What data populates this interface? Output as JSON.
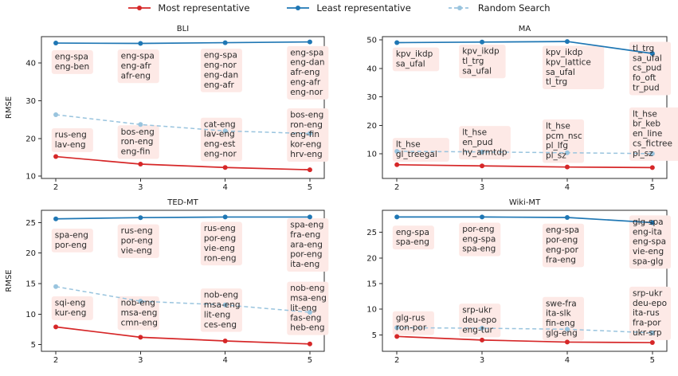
{
  "legend": {
    "items": [
      {
        "label": "Most representative",
        "color": "#d62728",
        "dash": "solid"
      },
      {
        "label": "Least representative",
        "color": "#1f77b4",
        "dash": "solid"
      },
      {
        "label": "Random Search",
        "color": "#99c4de",
        "dash": "dashed"
      }
    ]
  },
  "colors": {
    "most": "#d62728",
    "least": "#1f77b4",
    "random": "#99c4de",
    "annotation_bg": "#fde9e6",
    "annotation_text": "#2b2b2b",
    "axis_text": "#1a1a1a",
    "spine": "#2b2b2b"
  },
  "chart_data": [
    {
      "type": "line",
      "title": "BLI",
      "ylabel": "RMSE",
      "x": [
        2,
        3,
        4,
        5
      ],
      "xticks": [
        2,
        3,
        4,
        5
      ],
      "yticks": [
        10,
        20,
        30,
        40
      ],
      "xlim": [
        1.83,
        5.17
      ],
      "ylim": [
        9.4,
        47.0
      ],
      "series": [
        {
          "name": "Most representative",
          "key": "most",
          "style": "solid",
          "values": [
            15.2,
            13.2,
            12.3,
            11.7
          ]
        },
        {
          "name": "Least representative",
          "key": "least",
          "style": "solid",
          "values": [
            45.3,
            45.2,
            45.4,
            45.6
          ]
        },
        {
          "name": "Random Search",
          "key": "random",
          "style": "dashed",
          "values": [
            26.3,
            23.7,
            22.0,
            21.3
          ]
        }
      ],
      "annotations": [
        {
          "x": 2,
          "y": 43.4,
          "lines": [
            "eng-spa",
            "eng-ben"
          ]
        },
        {
          "x": 3,
          "y": 43.6,
          "lines": [
            "eng-spa",
            "eng-afr",
            "afr-eng"
          ]
        },
        {
          "x": 4,
          "y": 43.8,
          "lines": [
            "eng-spa",
            "eng-nor",
            "eng-dan",
            "eng-afr"
          ]
        },
        {
          "x": 5,
          "y": 44.5,
          "lines": [
            "eng-spa",
            "eng-dan",
            "afr-eng",
            "eng-afr",
            "eng-nor"
          ]
        },
        {
          "x": 2,
          "y": 22.7,
          "lines": [
            "rus-eng",
            "lav-eng"
          ]
        },
        {
          "x": 3,
          "y": 23.5,
          "lines": [
            "bos-eng",
            "ron-eng",
            "eng-fin"
          ]
        },
        {
          "x": 4,
          "y": 25.5,
          "lines": [
            "cat-eng",
            "lav-eng",
            "eng-est",
            "eng-nor"
          ]
        },
        {
          "x": 5,
          "y": 28.0,
          "lines": [
            "bos-eng",
            "ron-eng",
            "eng-fin",
            "kor-eng",
            "hrv-eng"
          ]
        }
      ]
    },
    {
      "type": "line",
      "title": "MA",
      "ylabel": "",
      "x": [
        2,
        3,
        4,
        5
      ],
      "xticks": [
        2,
        3,
        4,
        5
      ],
      "yticks": [
        10,
        20,
        30,
        40,
        50
      ],
      "xlim": [
        1.83,
        5.17
      ],
      "ylim": [
        1.4,
        51.1
      ],
      "series": [
        {
          "name": "Most representative",
          "key": "most",
          "style": "solid",
          "values": [
            6.2,
            5.8,
            5.4,
            5.2
          ]
        },
        {
          "name": "Least representative",
          "key": "least",
          "style": "solid",
          "values": [
            49.0,
            49.2,
            49.4,
            45.2
          ]
        },
        {
          "name": "Random Search",
          "key": "random",
          "style": "dashed",
          "values": [
            10.9,
            10.7,
            10.4,
            10.1
          ]
        }
      ],
      "annotations": [
        {
          "x": 2,
          "y": 47.3,
          "lines": [
            "kpv_ikdp",
            "sa_ufal"
          ]
        },
        {
          "x": 3,
          "y": 48.3,
          "lines": [
            "kpv_ikdp",
            "tl_trg",
            "sa_ufal"
          ]
        },
        {
          "x": 4,
          "y": 47.9,
          "lines": [
            "kpv_ikdp",
            "kpv_lattice",
            "sa_ufal",
            "tl_trg"
          ]
        },
        {
          "x": 5,
          "y": 49.3,
          "lines": [
            "tl_trg",
            "sa_ufal",
            "cs_pud",
            "fo_oft",
            "tr_pud"
          ]
        },
        {
          "x": 2,
          "y": 15.6,
          "lines": [
            "lt_hse",
            "gl_treegal"
          ]
        },
        {
          "x": 3,
          "y": 19.8,
          "lines": [
            "lt_hse",
            "en_pud",
            "hy_armtdp"
          ]
        },
        {
          "x": 4,
          "y": 22.1,
          "lines": [
            "lt_hse",
            "pcm_nsc",
            "pl_lfg",
            "pl_sz"
          ]
        },
        {
          "x": 5,
          "y": 26.3,
          "lines": [
            "lt_hse",
            "br_keb",
            "en_line",
            "cs_fictree",
            "pl_sz"
          ]
        }
      ]
    },
    {
      "type": "line",
      "title": "TED-MT",
      "ylabel": "RMSE",
      "x": [
        2,
        3,
        4,
        5
      ],
      "xticks": [
        2,
        3,
        4,
        5
      ],
      "yticks": [
        5,
        10,
        15,
        20,
        25
      ],
      "xlim": [
        1.83,
        5.17
      ],
      "ylim": [
        3.9,
        27.0
      ],
      "series": [
        {
          "name": "Most representative",
          "key": "most",
          "style": "solid",
          "values": [
            7.9,
            6.2,
            5.6,
            5.1
          ]
        },
        {
          "name": "Least representative",
          "key": "least",
          "style": "solid",
          "values": [
            25.6,
            25.8,
            25.9,
            25.9
          ]
        },
        {
          "name": "Random Search",
          "key": "random",
          "style": "dashed",
          "values": [
            14.5,
            12.1,
            11.5,
            10.3
          ]
        }
      ],
      "annotations": [
        {
          "x": 2,
          "y": 24.0,
          "lines": [
            "spa-eng",
            "por-eng"
          ]
        },
        {
          "x": 3,
          "y": 24.7,
          "lines": [
            "rus-eng",
            "por-eng",
            "vie-eng"
          ]
        },
        {
          "x": 4,
          "y": 25.1,
          "lines": [
            "rus-eng",
            "por-eng",
            "vie-eng",
            "ron-eng"
          ]
        },
        {
          "x": 5,
          "y": 25.7,
          "lines": [
            "spa-eng",
            "fra-eng",
            "ara-eng",
            "por-eng",
            "ita-eng"
          ]
        },
        {
          "x": 2,
          "y": 12.9,
          "lines": [
            "sqi-eng",
            "kur-eng"
          ]
        },
        {
          "x": 3,
          "y": 12.9,
          "lines": [
            "nob-eng",
            "msa-eng",
            "cmn-eng"
          ]
        },
        {
          "x": 4,
          "y": 14.2,
          "lines": [
            "nob-eng",
            "msa-eng",
            "lit-eng",
            "ces-eng"
          ]
        },
        {
          "x": 5,
          "y": 15.3,
          "lines": [
            "nob-eng",
            "msa-eng",
            "lit-eng",
            "fas-eng",
            "heb-eng"
          ]
        }
      ]
    },
    {
      "type": "line",
      "title": "Wiki-MT",
      "ylabel": "",
      "x": [
        2,
        3,
        4,
        5
      ],
      "xticks": [
        2,
        3,
        4,
        5
      ],
      "yticks": [
        5,
        10,
        15,
        20,
        25
      ],
      "xlim": [
        1.83,
        5.17
      ],
      "ylim": [
        1.8,
        29.3
      ],
      "series": [
        {
          "name": "Most representative",
          "key": "most",
          "style": "solid",
          "values": [
            4.7,
            4.0,
            3.6,
            3.5
          ]
        },
        {
          "name": "Least representative",
          "key": "least",
          "style": "solid",
          "values": [
            28.0,
            28.0,
            27.9,
            26.9
          ]
        },
        {
          "name": "Random Search",
          "key": "random",
          "style": "dashed",
          "values": [
            6.4,
            6.3,
            6.1,
            5.4
          ]
        }
      ],
      "annotations": [
        {
          "x": 2,
          "y": 26.3,
          "lines": [
            "eng-spa",
            "spa-eng"
          ]
        },
        {
          "x": 3,
          "y": 26.9,
          "lines": [
            "por-eng",
            "eng-spa",
            "spa-eng"
          ]
        },
        {
          "x": 4,
          "y": 26.7,
          "lines": [
            "eng-spa",
            "por-eng",
            "eng-por",
            "fra-eng"
          ]
        },
        {
          "x": 5,
          "y": 28.3,
          "lines": [
            "glg-spa",
            "eng-ita",
            "eng-spa",
            "vie-eng",
            "spa-glg"
          ]
        },
        {
          "x": 2,
          "y": 9.6,
          "lines": [
            "glg-rus",
            "ron-por"
          ]
        },
        {
          "x": 3,
          "y": 11.1,
          "lines": [
            "srp-ukr",
            "deu-epo",
            "eng-tur"
          ]
        },
        {
          "x": 4,
          "y": 12.4,
          "lines": [
            "swe-fra",
            "ita-slk",
            "fin-eng",
            "glg-eng"
          ]
        },
        {
          "x": 5,
          "y": 14.4,
          "lines": [
            "srp-ukr",
            "deu-epo",
            "ita-rus",
            "fra-por",
            "ukr-srp"
          ]
        }
      ]
    }
  ]
}
